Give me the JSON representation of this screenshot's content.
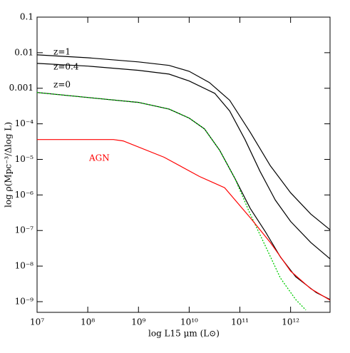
{
  "chart_data": {
    "type": "line",
    "xlabel": "log L15 μm (L⊙)",
    "ylabel": "log ρ(Mpc⁻³/Δlog L)",
    "xscale": "log",
    "yscale": "log",
    "xlim": [
      10000000.0,
      6000000000000.0
    ],
    "ylim": [
      5e-10,
      0.1
    ],
    "xticks": [
      {
        "value": 10000000.0,
        "label": "10⁷"
      },
      {
        "value": 100000000.0,
        "label": "10⁸"
      },
      {
        "value": 1000000000.0,
        "label": "10⁹"
      },
      {
        "value": 10000000000.0,
        "label": "10¹⁰"
      },
      {
        "value": 100000000000.0,
        "label": "10¹¹"
      },
      {
        "value": 1000000000000.0,
        "label": "10¹²"
      }
    ],
    "yticks": [
      0.1,
      0.01,
      0.001,
      {
        "value": 0.0001,
        "label": "10⁻⁴"
      },
      {
        "value": 1e-05,
        "label": "10⁻⁵"
      },
      {
        "value": 1e-06,
        "label": "10⁻⁶"
      },
      {
        "value": 1e-07,
        "label": "10⁻⁷"
      },
      {
        "value": 1e-08,
        "label": "10⁻⁸"
      },
      {
        "value": 1e-09,
        "label": "10⁻⁹"
      }
    ],
    "series": [
      {
        "name": "z=1",
        "color": "#000000",
        "x": [
          10000000.0,
          100000000.0,
          1000000000.0,
          4000000000.0,
          10000000000.0,
          25000000000.0,
          63000000000.0,
          160000000000.0,
          400000000000.0,
          1000000000000.0,
          2500000000000.0,
          6000000000000.0
        ],
        "values": [
          0.0087,
          0.0072,
          0.0055,
          0.0044,
          0.003,
          0.00145,
          0.00046,
          5.8e-05,
          6.6e-06,
          1.15e-06,
          2.9e-07,
          1.05e-07
        ]
      },
      {
        "name": "z=0.4",
        "color": "#000000",
        "x": [
          10000000.0,
          100000000.0,
          1000000000.0,
          4000000000.0,
          10000000000.0,
          32000000000.0,
          63000000000.0,
          126000000000.0,
          250000000000.0,
          500000000000.0,
          1000000000000.0,
          2500000000000.0,
          6000000000000.0
        ],
        "values": [
          0.005,
          0.0042,
          0.0032,
          0.0025,
          0.0016,
          0.00072,
          0.00023,
          3.6e-05,
          4.6e-06,
          7.2e-07,
          1.8e-07,
          4.6e-08,
          1.6e-08
        ]
      },
      {
        "name": "z=0",
        "color": "#000000",
        "x": [
          10000000.0,
          200000000.0,
          1000000000.0,
          4000000000.0,
          10000000000.0,
          20000000000.0,
          40000000000.0,
          80000000000.0,
          160000000000.0,
          320000000000.0,
          630000000000.0,
          1260000000000.0,
          3200000000000.0,
          6000000000000.0
        ],
        "values": [
          0.00076,
          0.0005,
          0.0004,
          0.00026,
          0.000145,
          7.2e-05,
          1.8e-05,
          2.9e-06,
          4.2e-07,
          9.1e-08,
          1.8e-08,
          5e-09,
          1.8e-09,
          1.15e-09
        ]
      },
      {
        "color": "#00cc00",
        "dashed": true,
        "x": [
          10000000.0,
          200000000.0,
          1000000000.0,
          4000000000.0,
          10000000000.0,
          20000000000.0,
          40000000000.0,
          80000000000.0,
          160000000000.0,
          320000000000.0,
          630000000000.0,
          1260000000000.0,
          2000000000000.0
        ],
        "values": [
          0.00076,
          0.0005,
          0.0004,
          0.00026,
          0.000145,
          7.2e-05,
          1.8e-05,
          2.9e-06,
          2.9e-07,
          3.6e-08,
          4.6e-09,
          1.15e-09,
          5.8e-10
        ]
      },
      {
        "name": "AGN",
        "color": "#ff0000",
        "x": [
          10000000.0,
          320000000.0,
          500000000.0,
          3200000000.0,
          16000000000.0,
          50000000000.0,
          160000000000.0,
          400000000000.0,
          1000000000000.0,
          2500000000000.0,
          6000000000000.0
        ],
        "values": [
          3.6e-05,
          3.6e-05,
          3.3e-05,
          1.15e-05,
          3.3e-06,
          1.6e-06,
          2.3e-07,
          4.6e-08,
          7.2e-09,
          2.3e-09,
          1.1e-09
        ]
      }
    ]
  }
}
